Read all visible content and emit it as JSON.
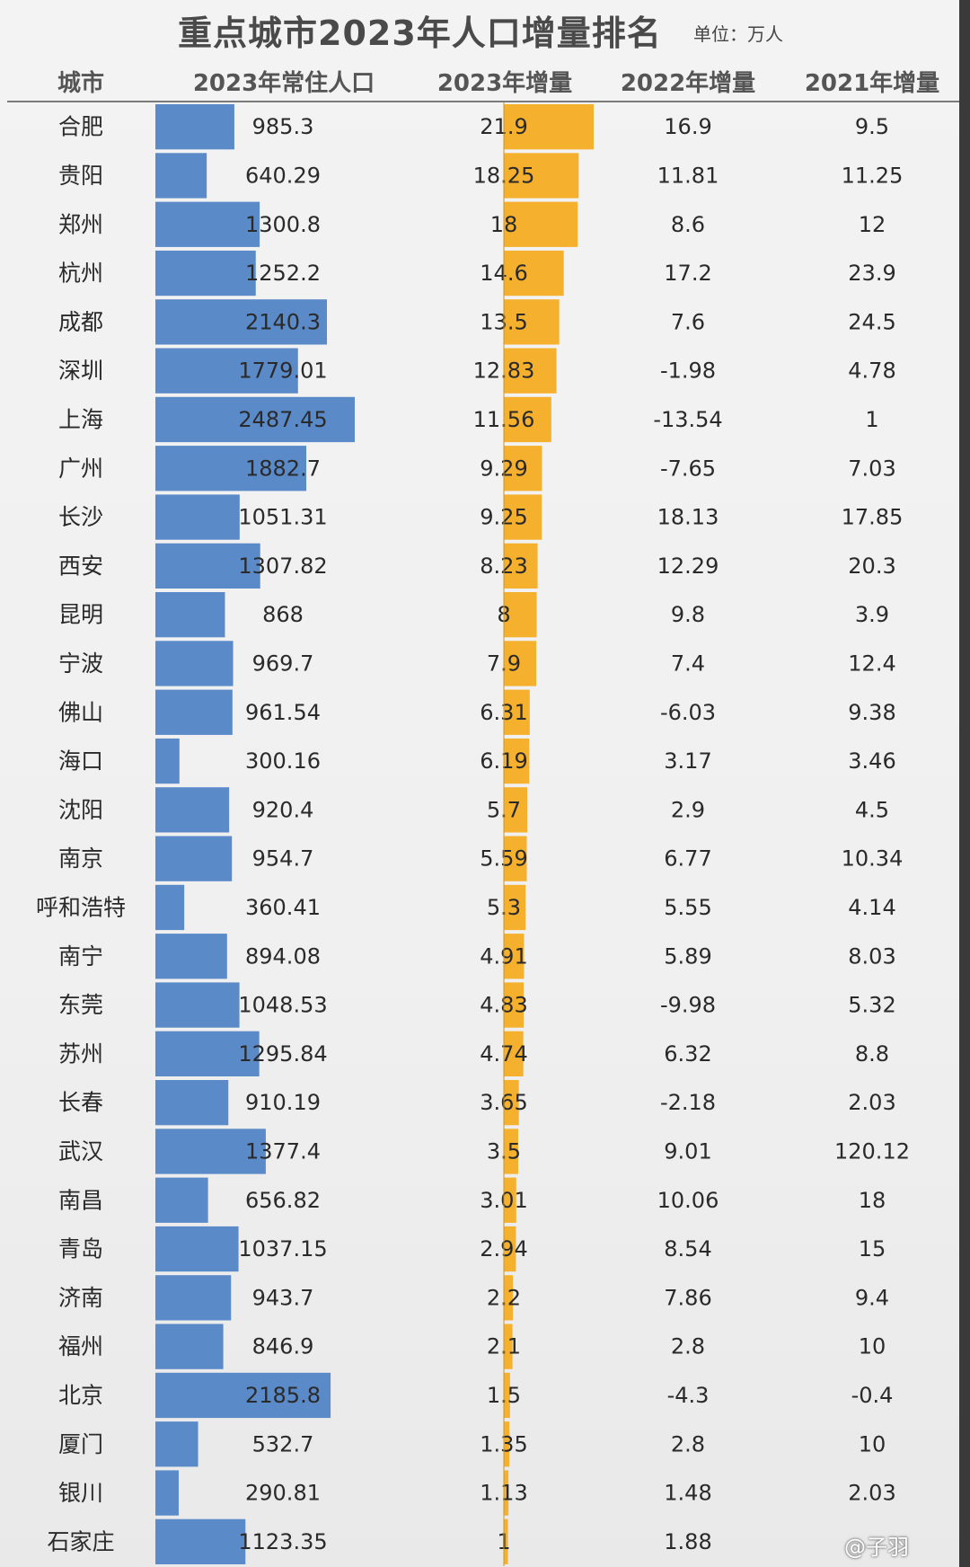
{
  "title": "重点城市2023年人口增量排名",
  "unit": "单位：万人",
  "watermark": "@子羽",
  "colors": {
    "population_bar": "#5b8ac9",
    "increase_bar": "#f5b02e",
    "background": "#f2f2f2"
  },
  "chart_data": {
    "type": "table",
    "title": "重点城市2023年人口增量排名",
    "columns": [
      "城市",
      "2023年常住人口",
      "2023年增量",
      "2022年增量",
      "2021年增量"
    ],
    "bar_columns": [
      "2023年常住人口",
      "2023年增量"
    ],
    "rows": [
      {
        "city": "合肥",
        "pop2023": "985.3",
        "inc2023": "21.9",
        "inc2022": "16.9",
        "inc2021": "9.5"
      },
      {
        "city": "贵阳",
        "pop2023": "640.29",
        "inc2023": "18.25",
        "inc2022": "11.81",
        "inc2021": "11.25"
      },
      {
        "city": "郑州",
        "pop2023": "1300.8",
        "inc2023": "18",
        "inc2022": "8.6",
        "inc2021": "12"
      },
      {
        "city": "杭州",
        "pop2023": "1252.2",
        "inc2023": "14.6",
        "inc2022": "17.2",
        "inc2021": "23.9"
      },
      {
        "city": "成都",
        "pop2023": "2140.3",
        "inc2023": "13.5",
        "inc2022": "7.6",
        "inc2021": "24.5"
      },
      {
        "city": "深圳",
        "pop2023": "1779.01",
        "inc2023": "12.83",
        "inc2022": "-1.98",
        "inc2021": "4.78"
      },
      {
        "city": "上海",
        "pop2023": "2487.45",
        "inc2023": "11.56",
        "inc2022": "-13.54",
        "inc2021": "1"
      },
      {
        "city": "广州",
        "pop2023": "1882.7",
        "inc2023": "9.29",
        "inc2022": "-7.65",
        "inc2021": "7.03"
      },
      {
        "city": "长沙",
        "pop2023": "1051.31",
        "inc2023": "9.25",
        "inc2022": "18.13",
        "inc2021": "17.85"
      },
      {
        "city": "西安",
        "pop2023": "1307.82",
        "inc2023": "8.23",
        "inc2022": "12.29",
        "inc2021": "20.3"
      },
      {
        "city": "昆明",
        "pop2023": "868",
        "inc2023": "8",
        "inc2022": "9.8",
        "inc2021": "3.9"
      },
      {
        "city": "宁波",
        "pop2023": "969.7",
        "inc2023": "7.9",
        "inc2022": "7.4",
        "inc2021": "12.4"
      },
      {
        "city": "佛山",
        "pop2023": "961.54",
        "inc2023": "6.31",
        "inc2022": "-6.03",
        "inc2021": "9.38"
      },
      {
        "city": "海口",
        "pop2023": "300.16",
        "inc2023": "6.19",
        "inc2022": "3.17",
        "inc2021": "3.46"
      },
      {
        "city": "沈阳",
        "pop2023": "920.4",
        "inc2023": "5.7",
        "inc2022": "2.9",
        "inc2021": "4.5"
      },
      {
        "city": "南京",
        "pop2023": "954.7",
        "inc2023": "5.59",
        "inc2022": "6.77",
        "inc2021": "10.34"
      },
      {
        "city": "呼和浩特",
        "pop2023": "360.41",
        "inc2023": "5.3",
        "inc2022": "5.55",
        "inc2021": "4.14"
      },
      {
        "city": "南宁",
        "pop2023": "894.08",
        "inc2023": "4.91",
        "inc2022": "5.89",
        "inc2021": "8.03"
      },
      {
        "city": "东莞",
        "pop2023": "1048.53",
        "inc2023": "4.83",
        "inc2022": "-9.98",
        "inc2021": "5.32"
      },
      {
        "city": "苏州",
        "pop2023": "1295.84",
        "inc2023": "4.74",
        "inc2022": "6.32",
        "inc2021": "8.8"
      },
      {
        "city": "长春",
        "pop2023": "910.19",
        "inc2023": "3.65",
        "inc2022": "-2.18",
        "inc2021": "2.03"
      },
      {
        "city": "武汉",
        "pop2023": "1377.4",
        "inc2023": "3.5",
        "inc2022": "9.01",
        "inc2021": "120.12"
      },
      {
        "city": "南昌",
        "pop2023": "656.82",
        "inc2023": "3.01",
        "inc2022": "10.06",
        "inc2021": "18"
      },
      {
        "city": "青岛",
        "pop2023": "1037.15",
        "inc2023": "2.94",
        "inc2022": "8.54",
        "inc2021": "15"
      },
      {
        "city": "济南",
        "pop2023": "943.7",
        "inc2023": "2.2",
        "inc2022": "7.86",
        "inc2021": "9.4"
      },
      {
        "city": "福州",
        "pop2023": "846.9",
        "inc2023": "2.1",
        "inc2022": "2.8",
        "inc2021": "10"
      },
      {
        "city": "北京",
        "pop2023": "2185.8",
        "inc2023": "1.5",
        "inc2022": "-4.3",
        "inc2021": "-0.4"
      },
      {
        "city": "厦门",
        "pop2023": "532.7",
        "inc2023": "1.35",
        "inc2022": "2.8",
        "inc2021": "10"
      },
      {
        "city": "银川",
        "pop2023": "290.81",
        "inc2023": "1.13",
        "inc2022": "1.48",
        "inc2021": "2.03"
      },
      {
        "city": "石家庄",
        "pop2023": "1123.35",
        "inc2023": "1",
        "inc2022": "1.88",
        "inc2021": ""
      }
    ]
  }
}
